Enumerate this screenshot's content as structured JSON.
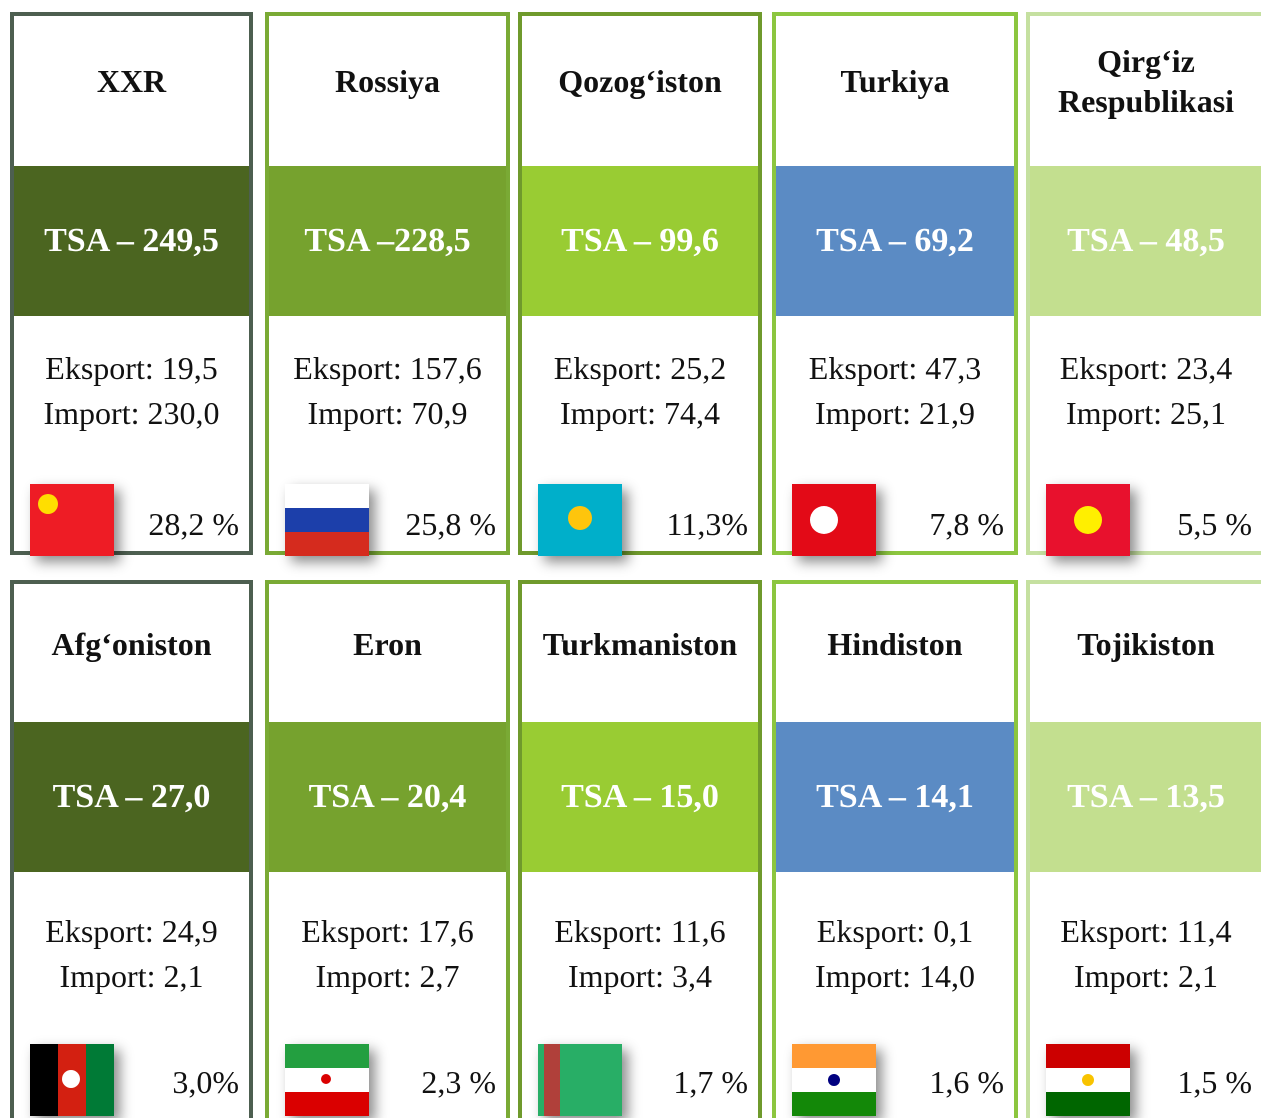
{
  "cards": [
    {
      "title": "XXR",
      "tsa": "TSA – 249,5",
      "eksport": "Eksport: 19,5",
      "import": "Import: 230,0",
      "share": "28,2 %"
    },
    {
      "title": "Rossiya",
      "tsa": "TSA –228,5",
      "eksport": "Eksport: 157,6",
      "import": "Import: 70,9",
      "share": "25,8 %"
    },
    {
      "title": "Qozog‘iston",
      "tsa": "TSA – 99,6",
      "eksport": "Eksport: 25,2",
      "import": "Import: 74,4",
      "share": "11,3%"
    },
    {
      "title": "Turkiya",
      "tsa": "TSA – 69,2",
      "eksport": "Eksport: 47,3",
      "import": "Import: 21,9",
      "share": "7,8 %"
    },
    {
      "title": "Qirg‘iz Respublikasi",
      "tsa": "TSA – 48,5",
      "eksport": "Eksport: 23,4",
      "import": "Import: 25,1",
      "share": "5,5 %"
    },
    {
      "title": "Afg‘oniston",
      "tsa": "TSA – 27,0",
      "eksport": "Eksport: 24,9",
      "import": "Import: 2,1",
      "share": "3,0%"
    },
    {
      "title": "Eron",
      "tsa": "TSA – 20,4",
      "eksport": "Eksport: 17,6",
      "import": "Import: 2,7",
      "share": "2,3 %"
    },
    {
      "title": "Turkmaniston",
      "tsa": "TSA – 15,0",
      "eksport": "Eksport: 11,6",
      "import": "Import: 3,4",
      "share": "1,7 %"
    },
    {
      "title": "Hindiston",
      "tsa": "TSA – 14,1",
      "eksport": "Eksport: 0,1",
      "import": "Import: 14,0",
      "share": "1,6 %"
    },
    {
      "title": "Tojikiston",
      "tsa": "TSA – 13,5",
      "eksport": "Eksport: 11,4",
      "import": "Import: 2,1",
      "share": "1,5 %"
    }
  ]
}
